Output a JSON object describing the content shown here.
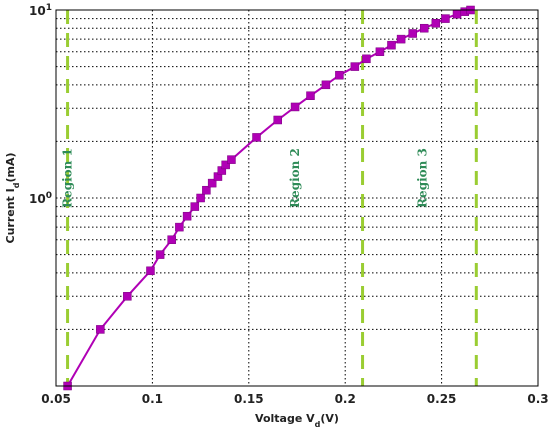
{
  "chart_data": {
    "type": "line",
    "title": "",
    "xlabel": "Voltage V",
    "xlabel_sub": "d",
    "xlabel_unit": "(V)",
    "ylabel": "Current I",
    "ylabel_sub": "d",
    "ylabel_unit": "(mA)",
    "xlim": [
      0.05,
      0.3
    ],
    "ylim": [
      0.1,
      10
    ],
    "yscale": "log",
    "grid": true,
    "x_ticks": [
      "0.05",
      "0.1",
      "0.15",
      "0.2",
      "0.25",
      "0.3"
    ],
    "x_tick_values": [
      0.05,
      0.1,
      0.15,
      0.2,
      0.25,
      0.3
    ],
    "y_ticks": [
      {
        "value": 1,
        "mantissa": "10",
        "exponent": "0"
      },
      {
        "value": 10,
        "mantissa": "10",
        "exponent": "1"
      }
    ],
    "series": [
      {
        "color": "#b000b5",
        "marker": "square",
        "x": [
          0.056,
          0.073,
          0.087,
          0.099,
          0.104,
          0.11,
          0.114,
          0.118,
          0.122,
          0.125,
          0.128,
          0.131,
          0.134,
          0.136,
          0.138,
          0.141,
          0.154,
          0.165,
          0.174,
          0.182,
          0.19,
          0.197,
          0.205,
          0.211,
          0.218,
          0.224,
          0.229,
          0.235,
          0.241,
          0.247,
          0.252,
          0.258,
          0.262,
          0.265
        ],
        "y": [
          0.1,
          0.2,
          0.3,
          0.41,
          0.5,
          0.6,
          0.7,
          0.8,
          0.9,
          1.0,
          1.1,
          1.2,
          1.3,
          1.4,
          1.5,
          1.6,
          2.1,
          2.6,
          3.05,
          3.5,
          4.0,
          4.5,
          5.0,
          5.5,
          6.0,
          6.5,
          7.0,
          7.5,
          8.0,
          8.5,
          9.0,
          9.5,
          9.8,
          10.0
        ]
      }
    ],
    "regions": [
      {
        "label": "Region 1",
        "boundary_x": 0.056,
        "label_x": 0.056
      },
      {
        "label": "Region 2",
        "boundary_x": 0.209,
        "label_x": 0.174
      },
      {
        "label": "Region 3",
        "boundary_x": 0.268,
        "label_x": 0.24
      }
    ],
    "region_line_color": "#9acd32",
    "region_label_color": "#2e8b57"
  }
}
